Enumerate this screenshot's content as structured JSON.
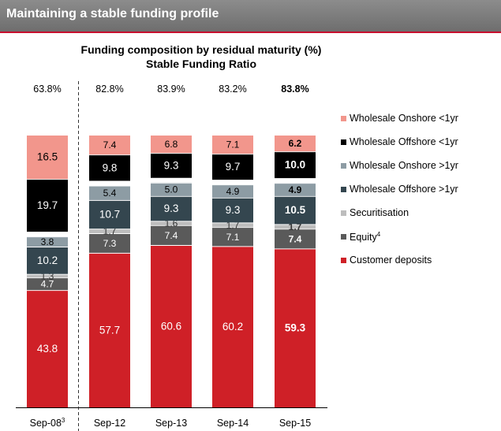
{
  "header": {
    "title": "Maintaining a stable funding profile"
  },
  "chart_data": {
    "type": "bar",
    "stacked": true,
    "title": "Funding composition by residual maturity (%)",
    "subtitle": "Stable Funding Ratio",
    "categories": [
      "Sep-08",
      "Sep-12",
      "Sep-13",
      "Sep-14",
      "Sep-15"
    ],
    "category_superscripts": [
      "3",
      "",
      "",
      "",
      ""
    ],
    "ratios": [
      "63.8%",
      "82.8%",
      "83.9%",
      "83.2%",
      "83.8%"
    ],
    "ratio_bold": [
      false,
      false,
      false,
      false,
      true
    ],
    "label_bold": [
      false,
      false,
      false,
      false,
      true
    ],
    "ratio_total_percent": [
      64,
      82.8,
      83.9,
      83.2,
      83.8
    ],
    "series": [
      {
        "name": "Customer deposits",
        "color": "#cf2027",
        "label_color": "#ffffff",
        "gap_after": false,
        "values": [
          43.8,
          57.7,
          60.6,
          60.2,
          59.3
        ],
        "labels": [
          "43.8",
          "57.7",
          "60.6",
          "60.2",
          "59.3"
        ]
      },
      {
        "name": "Equity",
        "superscript": "4",
        "color": "#5a5a5a",
        "label_color": "#ffffff",
        "gap_after": false,
        "values": [
          4.7,
          7.3,
          7.4,
          7.1,
          7.4
        ],
        "labels": [
          "4.7",
          "7.3",
          "7.4",
          "7.1",
          "7.4"
        ]
      },
      {
        "name": "Securitisation",
        "color": "#bdbdbd",
        "label_color": "#333333",
        "gap_after": false,
        "values": [
          1.3,
          1.7,
          1.6,
          1.7,
          1.7
        ],
        "labels": [
          "1.3",
          "1.7",
          "1.6",
          "1.7",
          "1.7"
        ]
      },
      {
        "name": "Wholesale Offshore >1yr",
        "color": "#34464f",
        "label_color": "#ffffff",
        "gap_after": false,
        "values": [
          10.2,
          10.7,
          9.3,
          9.3,
          10.5
        ],
        "labels": [
          "10.2",
          "10.7",
          "9.3",
          "9.3",
          "10.5"
        ]
      },
      {
        "name": "Wholesale Onshore >1yr",
        "color": "#8d9ca4",
        "label_color": "#000000",
        "gap_after": true,
        "values": [
          3.8,
          5.4,
          5.0,
          4.9,
          4.9
        ],
        "labels": [
          "3.8",
          "5.4",
          "5.0",
          "4.9",
          "4.9"
        ]
      },
      {
        "name": "Wholesale Offshore <1yr",
        "color": "#000000",
        "label_color": "#ffffff",
        "gap_after": false,
        "values": [
          19.7,
          9.8,
          9.3,
          9.7,
          10.0
        ],
        "labels": [
          "19.7",
          "9.8",
          "9.3",
          "9.7",
          "10.0"
        ]
      },
      {
        "name": "Wholesale Onshore <1yr",
        "color": "#f2968c",
        "label_color": "#000000",
        "gap_after": false,
        "values": [
          16.5,
          7.4,
          6.8,
          7.1,
          6.2
        ],
        "labels": [
          "16.5",
          "7.4",
          "6.8",
          "7.1",
          "6.2"
        ]
      }
    ],
    "ylim": [
      0,
      100
    ],
    "legend": "right",
    "divider_after_category": 0
  }
}
